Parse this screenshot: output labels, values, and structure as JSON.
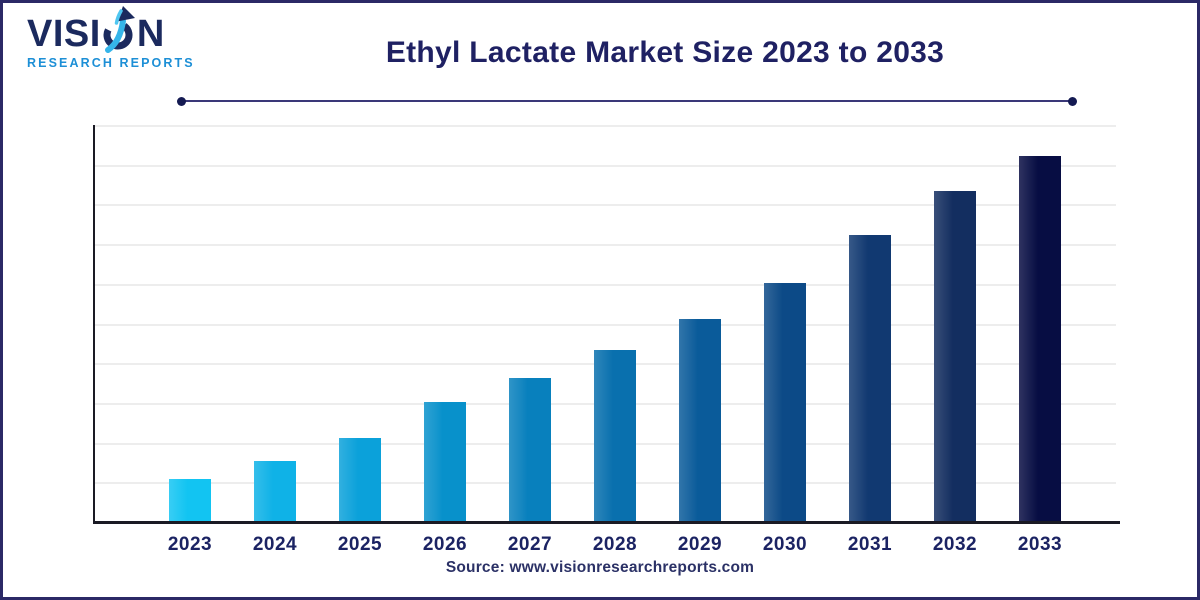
{
  "header": {
    "logo": {
      "brand_prefix": "VISI",
      "brand_suffix": "N",
      "tagline": "RESEARCH REPORTS"
    },
    "title": "Ethyl Lactate Market Size 2023 to 2033"
  },
  "chart_data": {
    "type": "bar",
    "title": "Ethyl Lactate Market Size 2023 to 2033",
    "categories": [
      "2023",
      "2024",
      "2025",
      "2026",
      "2027",
      "2028",
      "2029",
      "2030",
      "2031",
      "2032",
      "2033"
    ],
    "values": [
      1.05,
      1.5,
      2.1,
      3.0,
      3.6,
      4.3,
      5.1,
      6.0,
      7.2,
      8.3,
      9.2
    ],
    "value_note": "relative bar heights in gridline units; chart displays no numeric y-axis labels or data labels",
    "xlabel": "",
    "ylabel": "",
    "ylim": [
      0,
      10
    ],
    "grid": true,
    "legend": "none",
    "bar_colors": [
      "#12C4F2",
      "#0FB2E7",
      "#0BA1DA",
      "#0891CB",
      "#0880BD",
      "#0970AE",
      "#0A5B9A",
      "#0C4A87",
      "#113971",
      "#132E60",
      "#070D43"
    ]
  },
  "footer": {
    "source": "Source: www.visionresearchreports.com"
  },
  "colors": {
    "page_border": "#2B2966",
    "title_text": "#1F2163",
    "brand_navy": "#1B2A5E",
    "brand_blue": "#1D8FD6",
    "axis_line": "#1A1A24",
    "gridline": "#EDEDED",
    "tick_label": "#1B2363",
    "divider_line": "#3A3878",
    "divider_dot": "#141A52"
  }
}
